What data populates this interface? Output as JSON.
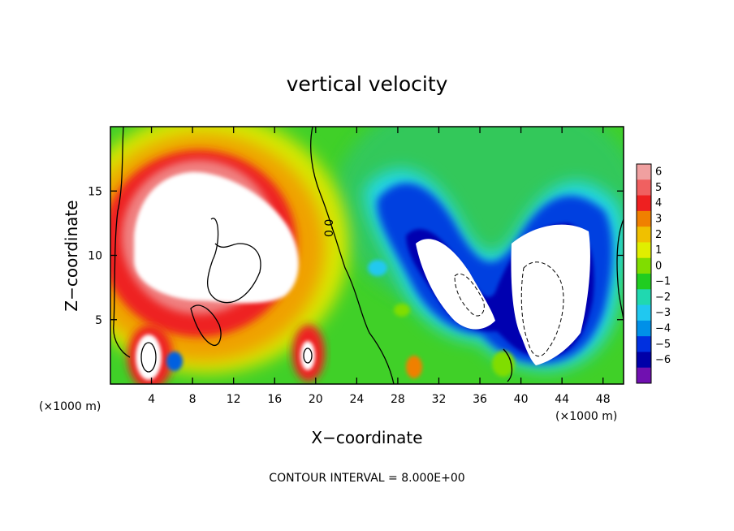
{
  "chart_data": {
    "type": "heatmap",
    "title": "vertical velocity",
    "xlabel": "X−coordinate",
    "ylabel": "Z−coordinate",
    "x_unit_label": "(×1000 m)",
    "y_unit_label": "(×1000 m)",
    "footer": "CONTOUR INTERVAL = 8.000E+00",
    "contour_label": "0.0",
    "xlim": [
      0,
      50
    ],
    "ylim": [
      0,
      20
    ],
    "x_ticks": [
      4,
      8,
      12,
      16,
      20,
      24,
      28,
      32,
      36,
      40,
      44,
      48
    ],
    "y_ticks": [
      5,
      10,
      15
    ],
    "colorbar": {
      "levels": [
        6,
        5,
        4,
        3,
        2,
        1,
        0,
        -1,
        -2,
        -3,
        -4,
        -5,
        -6
      ],
      "labels": [
        "6",
        "5",
        "4",
        "3",
        "2",
        "1",
        "0",
        "−1",
        "−2",
        "−3",
        "−4",
        "−5",
        "−6"
      ],
      "colors": [
        "#f0a0a0",
        "#f06060",
        "#ee2020",
        "#f08000",
        "#f0c000",
        "#e0ee00",
        "#80dd00",
        "#20cc20",
        "#20d8b0",
        "#20c8f0",
        "#0090e8",
        "#0030e0",
        "#0000a8",
        "#7010b0"
      ]
    },
    "features": [
      {
        "kind": "updraft",
        "x": 9.5,
        "z": 12.5,
        "level_max": 6
      },
      {
        "kind": "updraft",
        "x": 3.6,
        "z": 2.2,
        "level_max": 6
      },
      {
        "kind": "updraft",
        "x": 19,
        "z": 2.2,
        "level_max": 6
      },
      {
        "kind": "downdraft",
        "x": 34,
        "z": 7.5,
        "level_min": -6
      },
      {
        "kind": "downdraft",
        "x": 42.5,
        "z": 7.5,
        "level_min": -6
      }
    ]
  }
}
